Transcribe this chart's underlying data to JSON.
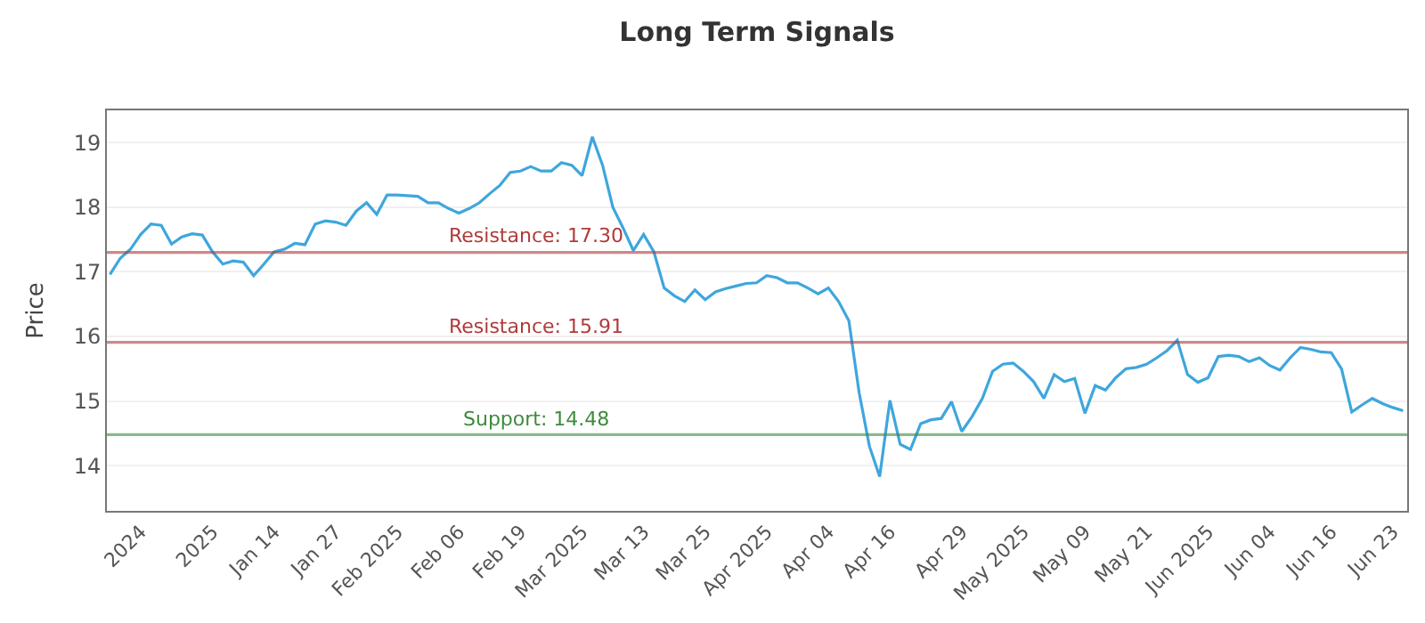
{
  "chart_data": {
    "type": "line",
    "title": "Long Term Signals",
    "ylabel": "Price",
    "categories": [
      null,
      null,
      null,
      "2024",
      null,
      null,
      null,
      null,
      null,
      null,
      "2025",
      null,
      null,
      null,
      null,
      null,
      "Jan 14",
      null,
      null,
      null,
      null,
      null,
      "Jan 27",
      null,
      null,
      null,
      null,
      null,
      "Feb 2025",
      null,
      null,
      null,
      null,
      null,
      "Feb 06",
      null,
      null,
      null,
      null,
      null,
      "Feb 19",
      null,
      null,
      null,
      null,
      null,
      "Mar 2025",
      null,
      null,
      null,
      null,
      null,
      "Mar 13",
      null,
      null,
      null,
      null,
      null,
      "Mar 25",
      null,
      null,
      null,
      null,
      null,
      "Apr 2025",
      null,
      null,
      null,
      null,
      null,
      "Apr 04",
      null,
      null,
      null,
      null,
      null,
      "Apr 16",
      null,
      null,
      null,
      null,
      null,
      null,
      "Apr 29",
      null,
      null,
      null,
      null,
      null,
      "May 2025",
      null,
      null,
      null,
      null,
      null,
      "May 09",
      null,
      null,
      null,
      null,
      null,
      "May 21",
      null,
      null,
      null,
      null,
      null,
      "Jun 2025",
      null,
      null,
      null,
      null,
      null,
      "Jun 04",
      null,
      null,
      null,
      null,
      null,
      "Jun 16",
      null,
      null,
      null,
      null,
      null,
      "Jun 23",
      null
    ],
    "series": [
      {
        "color": "#3ea6dd",
        "values": [
          16.96,
          17.21,
          17.35,
          17.58,
          17.74,
          17.72,
          17.43,
          17.54,
          17.59,
          17.57,
          17.31,
          17.12,
          17.17,
          17.15,
          16.94,
          17.12,
          17.31,
          17.35,
          17.44,
          17.42,
          17.74,
          17.79,
          17.77,
          17.72,
          17.94,
          18.07,
          17.89,
          18.19,
          18.19,
          18.18,
          18.17,
          18.07,
          18.07,
          17.98,
          17.91,
          17.98,
          18.07,
          18.21,
          18.34,
          18.54,
          18.56,
          18.63,
          18.56,
          18.56,
          18.69,
          18.65,
          18.49,
          19.09,
          18.65,
          18.0,
          17.68,
          17.33,
          17.58,
          17.31,
          16.75,
          16.63,
          16.54,
          16.72,
          16.57,
          16.69,
          16.74,
          16.78,
          16.82,
          16.83,
          16.94,
          16.91,
          16.83,
          16.83,
          16.75,
          16.66,
          16.75,
          16.54,
          16.24,
          15.13,
          14.3,
          13.83,
          15.01,
          14.33,
          14.25,
          14.65,
          14.71,
          14.73,
          14.99,
          14.53,
          14.76,
          15.04,
          15.46,
          15.57,
          15.59,
          15.46,
          15.3,
          15.04,
          15.41,
          15.3,
          15.35,
          14.81,
          15.24,
          15.17,
          15.36,
          15.5,
          15.52,
          15.57,
          15.67,
          15.78,
          15.94,
          15.41,
          15.29,
          15.36,
          15.69,
          15.71,
          15.69,
          15.61,
          15.67,
          15.55,
          15.48,
          15.67,
          15.83,
          15.8,
          15.76,
          15.75,
          15.5,
          14.83,
          14.94,
          15.04,
          14.96,
          14.9,
          14.85
        ]
      }
    ],
    "ylim": [
      13.3,
      19.5
    ],
    "yticks": [
      14,
      15,
      16,
      17,
      18,
      19
    ],
    "grid": "y",
    "marker": "none",
    "line_style": "solid",
    "ref_lines": [
      {
        "axis": "y",
        "value": 17.3,
        "label": "Resistance: 17.30",
        "color": "#b03a3a"
      },
      {
        "axis": "y",
        "value": 15.91,
        "label": "Resistance: 15.91",
        "color": "#b03a3a"
      },
      {
        "axis": "y",
        "value": 14.48,
        "label": "Support: 14.48",
        "color": "#3d8b3d"
      }
    ]
  }
}
